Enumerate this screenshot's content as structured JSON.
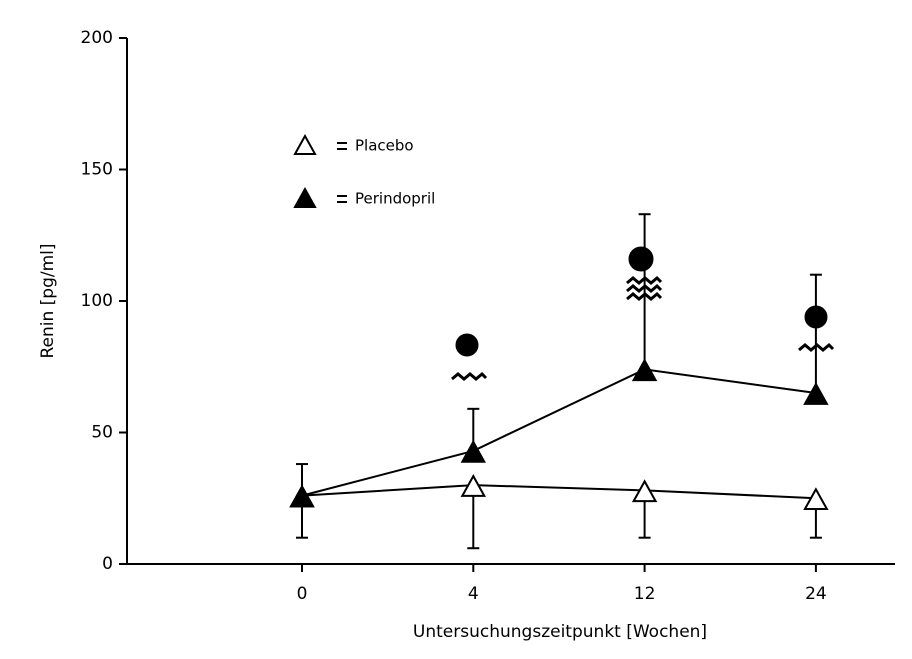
{
  "chart_data": {
    "type": "line",
    "xlabel": "Untersuchungszeitpunkt [Wochen]",
    "ylabel": "Renin [pg/ml]",
    "categories": [
      "0",
      "4",
      "12",
      "24"
    ],
    "ylim": [
      0,
      200
    ],
    "yticks": [
      0,
      50,
      100,
      150,
      200
    ],
    "series": [
      {
        "name": "Placebo",
        "color": "#000000",
        "marker": "triangle-open",
        "error_side": "lower",
        "values": [
          26,
          30,
          28,
          25
        ],
        "errors": [
          16,
          24,
          18,
          15
        ]
      },
      {
        "name": "Perindopril",
        "color": "#000000",
        "marker": "triangle-filled",
        "error_side": "upper",
        "values": [
          26,
          43,
          74,
          65
        ],
        "errors": [
          12,
          16,
          59,
          45
        ]
      }
    ]
  }
}
